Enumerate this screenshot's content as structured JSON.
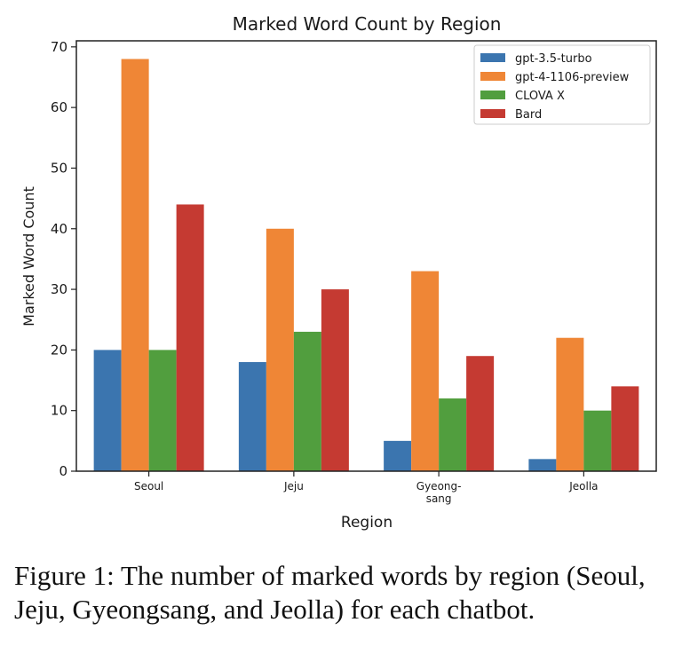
{
  "chart_data": {
    "type": "bar",
    "title": "Marked Word Count by Region",
    "xlabel": "Region",
    "ylabel": "Marked Word Count",
    "categories": [
      "Seoul",
      "Jeju",
      "Gyeong-sang",
      "Jeolla"
    ],
    "category_lines": [
      [
        "Seoul"
      ],
      [
        "Jeju"
      ],
      [
        "Gyeong-",
        "sang"
      ],
      [
        "Jeolla"
      ]
    ],
    "yticks": [
      0,
      10,
      20,
      30,
      40,
      50,
      60,
      70
    ],
    "ylim": [
      0,
      71
    ],
    "grid": false,
    "legend_position": "top-right",
    "series": [
      {
        "name": "gpt-3.5-turbo",
        "color": "#3b75af",
        "values": [
          20,
          18,
          5,
          2
        ]
      },
      {
        "name": "gpt-4-1106-preview",
        "color": "#ef8636",
        "values": [
          68,
          40,
          33,
          22
        ]
      },
      {
        "name": "CLOVA X",
        "color": "#519e3e",
        "values": [
          20,
          23,
          12,
          10
        ]
      },
      {
        "name": "Bard",
        "color": "#c53a32",
        "values": [
          44,
          30,
          19,
          14
        ]
      }
    ]
  },
  "caption": "Figure 1: The number of marked words by region (Seoul, Jeju, Gyeongsang, and Jeolla) for each chatbot."
}
